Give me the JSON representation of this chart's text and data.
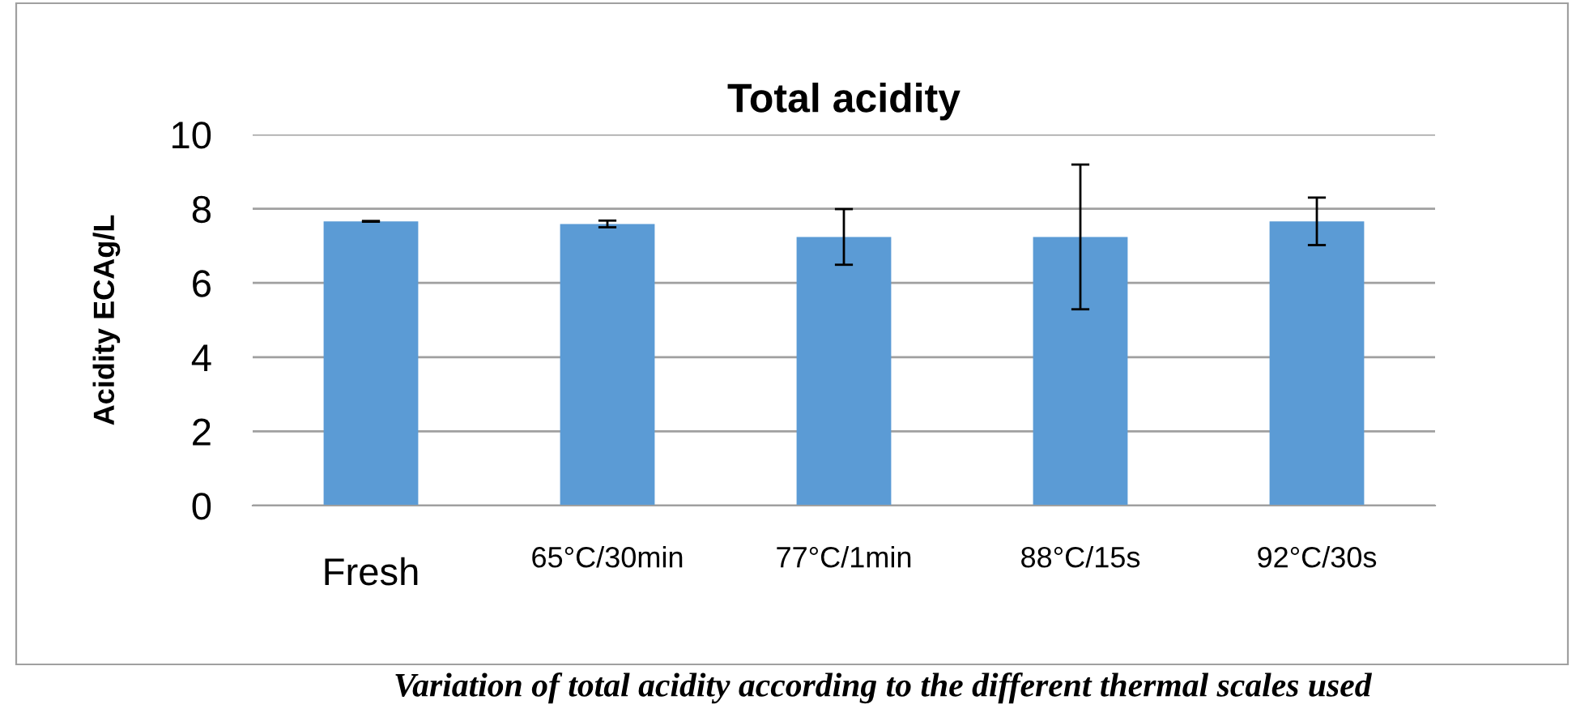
{
  "chart_data": {
    "type": "bar",
    "title": "Total acidity",
    "ylabel": "Acidity ECAg/L",
    "categories": [
      "Fresh",
      "65°C/30min",
      "77°C/1min",
      "88°C/15s",
      "92°C/30s"
    ],
    "values": [
      7.66,
      7.59,
      7.24,
      7.24,
      7.66
    ],
    "errors": [
      0.01,
      0.09,
      0.75,
      1.95,
      0.64
    ],
    "color": "#5b9bd5",
    "ylim": [
      0,
      10
    ],
    "yticks": [
      0,
      2,
      4,
      6,
      8,
      10
    ],
    "grid": "y",
    "annotations": [
      "Variation of total acidity according to the different thermal scales used"
    ]
  }
}
